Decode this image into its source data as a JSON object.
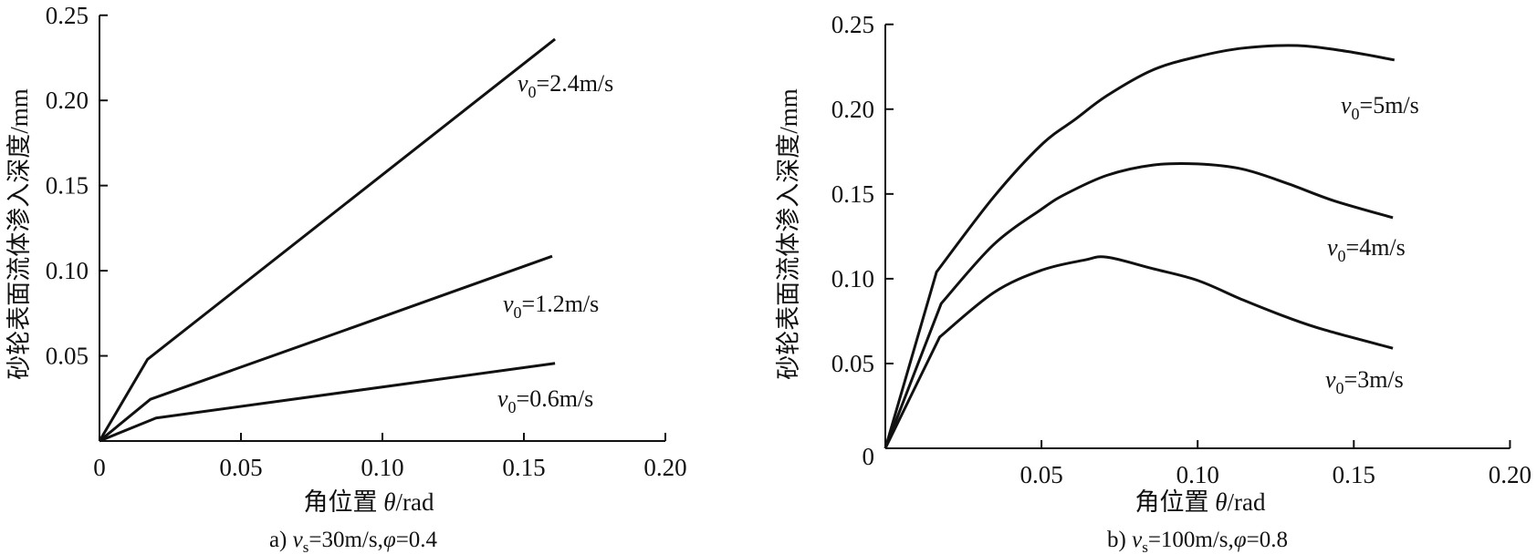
{
  "chart_data": [
    {
      "type": "line",
      "panel": "a",
      "xlabel": {
        "prefix": "角位置 ",
        "var": "θ",
        "unit": "/rad"
      },
      "ylabel": "砂轮表面流体渗入深度/mm",
      "caption": {
        "prefix": "a) ",
        "var": "v",
        "sub": "s",
        "mid": "=30m/s,",
        "var2": "φ",
        "text": "=0.4"
      },
      "xlim": [
        0,
        0.2
      ],
      "ylim": [
        0,
        0.25
      ],
      "xticks": [
        "0",
        "0.05",
        "0.10",
        "0.15",
        "0.20"
      ],
      "xtick_values": [
        0,
        0.05,
        0.1,
        0.15,
        0.2
      ],
      "yticks": [
        "0.05",
        "0.10",
        "0.15",
        "0.20",
        "0.25"
      ],
      "ytick_values": [
        0.05,
        0.1,
        0.15,
        0.2,
        0.25
      ],
      "grid": false,
      "series": [
        {
          "label": {
            "var": "v",
            "sub": "0",
            "text": "=2.4m/s"
          },
          "x": [
            0,
            0.017,
            0.161
          ],
          "y": [
            0,
            0.048,
            0.236
          ]
        },
        {
          "label": {
            "var": "v",
            "sub": "0",
            "text": "=1.2m/s"
          },
          "x": [
            0,
            0.018,
            0.09,
            0.16
          ],
          "y": [
            0,
            0.0245,
            0.067,
            0.1085
          ]
        },
        {
          "label": {
            "var": "v",
            "sub": "0",
            "text": "=0.6m/s"
          },
          "x": [
            0,
            0.02,
            0.161
          ],
          "y": [
            0,
            0.0135,
            0.0456
          ]
        }
      ]
    },
    {
      "type": "line",
      "panel": "b",
      "xlabel": {
        "prefix": "角位置 ",
        "var": "θ",
        "unit": "/rad"
      },
      "ylabel": "砂轮表面流体渗入深度/mm",
      "caption": {
        "prefix": "b) ",
        "var": "v",
        "sub": "s",
        "mid": "=100m/s,",
        "var2": "φ",
        "text": "=0.8"
      },
      "xlim": [
        0,
        0.2
      ],
      "ylim": [
        0,
        0.25
      ],
      "xticks": [
        "0.05",
        "0.10",
        "0.15",
        "0.20"
      ],
      "xtick_values": [
        0.05,
        0.1,
        0.15,
        0.2
      ],
      "yticks": [
        "0",
        "0.05",
        "0.10",
        "0.15",
        "0.20",
        "0.25"
      ],
      "ytick_values": [
        0,
        0.05,
        0.1,
        0.15,
        0.2,
        0.25
      ],
      "grid": false,
      "series": [
        {
          "label": {
            "var": "v",
            "sub": "0",
            "text": "=5m/s"
          },
          "x": [
            0,
            0.0164,
            0.0346,
            0.05,
            0.0608,
            0.071,
            0.0855,
            0.1,
            0.1145,
            0.132,
            0.148,
            0.163
          ],
          "y": [
            0,
            0.104,
            0.148,
            0.179,
            0.194,
            0.208,
            0.223,
            0.231,
            0.236,
            0.2375,
            0.234,
            0.229
          ]
        },
        {
          "label": {
            "var": "v",
            "sub": "0",
            "text": "=4m/s"
          },
          "x": [
            0,
            0.0179,
            0.0346,
            0.05,
            0.0578,
            0.071,
            0.0855,
            0.1,
            0.1145,
            0.129,
            0.1436,
            0.1625
          ],
          "y": [
            0,
            0.0854,
            0.12,
            0.141,
            0.15,
            0.161,
            0.167,
            0.1677,
            0.1646,
            0.156,
            0.146,
            0.136
          ]
        },
        {
          "label": {
            "var": "v",
            "sub": "0",
            "text": "=3m/s"
          },
          "x": [
            0,
            0.0174,
            0.0346,
            0.05,
            0.0637,
            0.071,
            0.0855,
            0.1,
            0.1145,
            0.129,
            0.1407,
            0.1625
          ],
          "y": [
            0,
            0.0656,
            0.0917,
            0.105,
            0.111,
            0.1127,
            0.106,
            0.099,
            0.0875,
            0.077,
            0.0698,
            0.059
          ]
        }
      ]
    }
  ]
}
